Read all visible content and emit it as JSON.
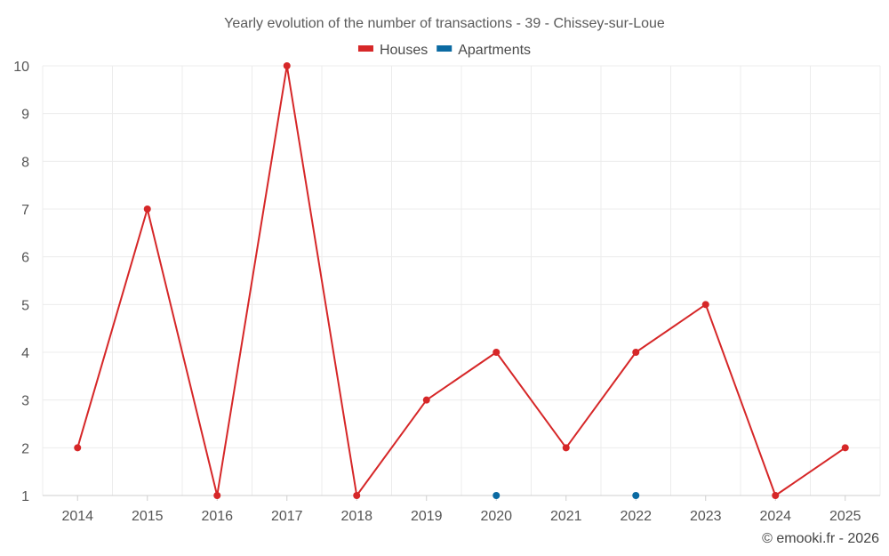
{
  "chart_data": {
    "type": "line",
    "title": "Yearly evolution of the number of transactions - 39 - Chissey-sur-Loue",
    "xlabel": "",
    "ylabel": "",
    "categories": [
      "2014",
      "2015",
      "2016",
      "2017",
      "2018",
      "2019",
      "2020",
      "2021",
      "2022",
      "2023",
      "2024",
      "2025"
    ],
    "ylim": [
      1,
      10
    ],
    "yticks": [
      "1",
      "2",
      "3",
      "4",
      "5",
      "6",
      "7",
      "8",
      "9",
      "10"
    ],
    "grid": true,
    "legend_position": "top-center",
    "series": [
      {
        "name": "Houses",
        "color": "#d62728",
        "values": [
          2,
          7,
          1,
          10,
          1,
          3,
          4,
          2,
          4,
          5,
          1,
          2
        ]
      },
      {
        "name": "Apartments",
        "color": "#0b6aa2",
        "values": [
          null,
          null,
          null,
          null,
          null,
          null,
          1,
          null,
          1,
          null,
          null,
          null
        ]
      }
    ]
  },
  "credit": "© emooki.fr - 2026"
}
